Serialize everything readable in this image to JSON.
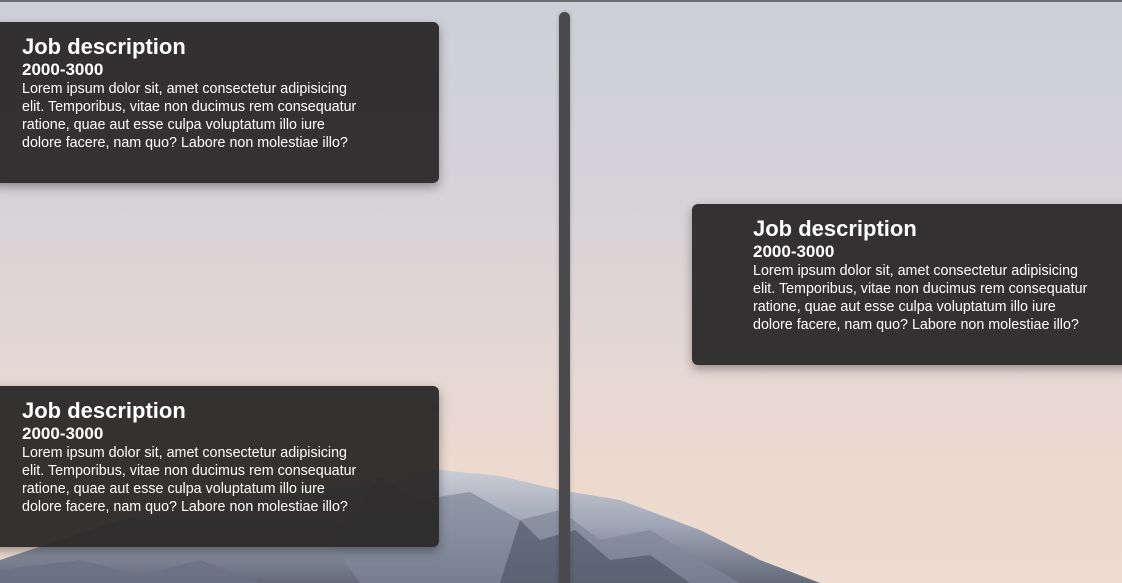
{
  "timeline": {
    "entries": [
      {
        "side": "left",
        "title": "Job description",
        "years": "2000-3000",
        "text": "Lorem ipsum dolor sit, amet consectetur adipisicing elit. Temporibus, vitae non ducimus rem consequatur ratione, quae aut esse culpa voluptatum illo iure dolore facere, nam quo? Labore non molestiae illo?"
      },
      {
        "side": "right",
        "title": "Job description",
        "years": "2000-3000",
        "text": "Lorem ipsum dolor sit, amet consectetur adipisicing elit. Temporibus, vitae non ducimus rem consequatur ratione, quae aut esse culpa voluptatum illo iure dolore facere, nam quo? Labore non molestiae illo?"
      },
      {
        "side": "left",
        "title": "Job description",
        "years": "2000-3000",
        "text": "Lorem ipsum dolor sit, amet consectetur adipisicing elit. Temporibus, vitae non ducimus rem consequatur ratione, quae aut esse culpa voluptatum illo iure dolore facere, nam quo? Labore non molestiae illo?"
      }
    ]
  },
  "colors": {
    "card_background": "#2c2a2a",
    "timeline_line": "#4a4a4c",
    "text": "#ffffff"
  }
}
